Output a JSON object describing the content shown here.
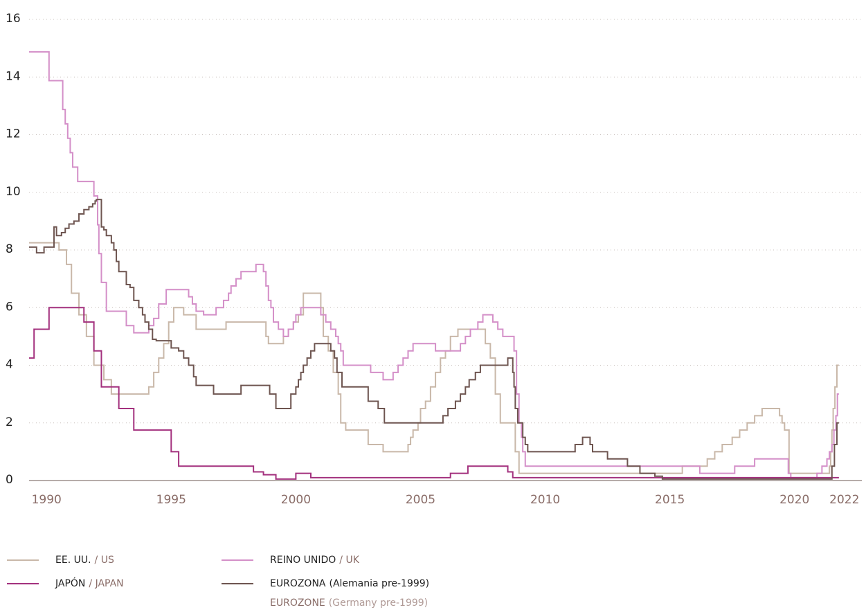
{
  "chart_data": {
    "type": "line",
    "step": true,
    "xlim": [
      1989.3,
      2022.7
    ],
    "ylim": [
      0,
      16
    ],
    "xticks": [
      1990,
      1995,
      2000,
      2005,
      2010,
      2015,
      2020,
      2022
    ],
    "yticks": [
      0,
      2,
      4,
      6,
      8,
      10,
      12,
      14,
      16
    ],
    "grid": true,
    "series": [
      {
        "name": "EE. UU.",
        "name_en": "/ US",
        "color": "#c9b8a9",
        "x": [
          1989.3,
          1990.5,
          1990.8,
          1991.0,
          1991.3,
          1991.6,
          1991.9,
          1992.3,
          1992.6,
          1994.1,
          1994.3,
          1994.5,
          1994.7,
          1994.9,
          1995.1,
          1995.5,
          1996.0,
          1997.2,
          1998.8,
          1998.9,
          1999.5,
          1999.7,
          1999.9,
          2000.1,
          2000.3,
          2001.0,
          2001.1,
          2001.3,
          2001.5,
          2001.7,
          2001.8,
          2002.0,
          2002.9,
          2003.5,
          2004.5,
          2004.6,
          2004.7,
          2004.9,
          2005.0,
          2005.2,
          2005.4,
          2005.6,
          2005.8,
          2006.0,
          2006.2,
          2006.5,
          2007.6,
          2007.8,
          2008.0,
          2008.2,
          2008.8,
          2008.95,
          2015.5,
          2016.5,
          2016.8,
          2017.1,
          2017.5,
          2017.8,
          2018.1,
          2018.4,
          2018.7,
          2019.4,
          2019.5,
          2019.6,
          2019.78,
          2021.4,
          2021.45,
          2021.5,
          2021.55,
          2021.62,
          2021.7,
          2021.78
        ],
        "values": [
          8.25,
          8.0,
          7.5,
          6.5,
          5.75,
          5.0,
          4.0,
          3.5,
          3.0,
          3.25,
          3.75,
          4.25,
          4.75,
          5.5,
          6.0,
          5.75,
          5.25,
          5.5,
          5.0,
          4.75,
          5.0,
          5.25,
          5.5,
          5.75,
          6.5,
          6.0,
          5.0,
          4.5,
          3.75,
          3.0,
          2.0,
          1.75,
          1.25,
          1.0,
          1.25,
          1.5,
          1.75,
          2.0,
          2.5,
          2.75,
          3.25,
          3.75,
          4.25,
          4.5,
          5.0,
          5.25,
          4.75,
          4.25,
          3.0,
          2.0,
          1.0,
          0.25,
          0.5,
          0.75,
          1.0,
          1.25,
          1.5,
          1.75,
          2.0,
          2.25,
          2.5,
          2.25,
          2.0,
          1.75,
          0.25,
          0.5,
          1.0,
          1.75,
          2.5,
          3.25,
          4.0,
          4.0
        ]
      },
      {
        "name": "REINO UNIDO",
        "name_en": "/ UK",
        "color": "#d48fc8",
        "x": [
          1989.3,
          1990.1,
          1990.65,
          1990.75,
          1990.85,
          1990.95,
          1991.05,
          1991.25,
          1991.9,
          1992.05,
          1992.1,
          1992.2,
          1992.4,
          1993.2,
          1993.5,
          1994.1,
          1994.3,
          1994.5,
          1994.8,
          1995.7,
          1995.85,
          1996.0,
          1996.3,
          1996.8,
          1997.1,
          1997.3,
          1997.4,
          1997.6,
          1997.8,
          1998.4,
          1998.7,
          1998.8,
          1998.9,
          1999.0,
          1999.1,
          1999.3,
          1999.5,
          1999.7,
          1999.9,
          2000.0,
          2000.2,
          2001.0,
          2001.2,
          2001.4,
          2001.6,
          2001.7,
          2001.8,
          2001.9,
          2003.0,
          2003.5,
          2003.9,
          2004.1,
          2004.3,
          2004.5,
          2004.7,
          2005.6,
          2006.6,
          2006.8,
          2007.0,
          2007.3,
          2007.5,
          2007.9,
          2008.1,
          2008.3,
          2008.75,
          2008.85,
          2008.95,
          2009.05,
          2009.1,
          2009.2,
          2016.2,
          2017.6,
          2018.4,
          2019.75,
          2019.85,
          2020.9,
          2021.1,
          2021.3,
          2021.4,
          2021.5,
          2021.58,
          2021.66,
          2021.72,
          2021.78
        ],
        "values": [
          14.875,
          13.875,
          12.875,
          12.375,
          11.875,
          11.375,
          10.875,
          10.375,
          9.875,
          8.875,
          7.875,
          6.875,
          5.875,
          5.375,
          5.125,
          5.375,
          5.625,
          6.125,
          6.625,
          6.375,
          6.125,
          5.875,
          5.75,
          6.0,
          6.25,
          6.5,
          6.75,
          7.0,
          7.25,
          7.5,
          7.25,
          6.75,
          6.25,
          6.0,
          5.5,
          5.25,
          5.0,
          5.25,
          5.5,
          5.75,
          6.0,
          5.75,
          5.5,
          5.25,
          5.0,
          4.75,
          4.5,
          4.0,
          3.75,
          3.5,
          3.75,
          4.0,
          4.25,
          4.5,
          4.75,
          4.5,
          4.75,
          5.0,
          5.25,
          5.5,
          5.75,
          5.5,
          5.25,
          5.0,
          4.5,
          3.0,
          2.0,
          1.5,
          1.0,
          0.5,
          0.25,
          0.5,
          0.75,
          0.25,
          0.1,
          0.25,
          0.5,
          0.75,
          1.0,
          1.25,
          1.75,
          2.25,
          3.0,
          3.0
        ]
      },
      {
        "name": "JAPÓN",
        "name_en": "/ JAPAN",
        "color": "#a3317e",
        "x": [
          1989.3,
          1989.5,
          1990.1,
          1991.5,
          1991.9,
          1992.2,
          1992.9,
          1993.5,
          1995.0,
          1995.3,
          1998.3,
          1998.7,
          1999.2,
          2000.0,
          2000.6,
          2006.2,
          2006.9,
          2008.5,
          2008.7,
          2021.78
        ],
        "values": [
          4.25,
          5.25,
          6.0,
          5.5,
          4.5,
          3.25,
          2.5,
          1.75,
          1.0,
          0.5,
          0.3,
          0.2,
          0.05,
          0.25,
          0.1,
          0.25,
          0.5,
          0.3,
          0.1,
          0.1
        ]
      },
      {
        "name": "EUROZONA",
        "name_note": "(Alemania pre-1999)",
        "name_en": "EUROZONE",
        "name_en_note": "(Germany pre-1999)",
        "color": "#6e5550",
        "x": [
          1989.3,
          1989.6,
          1989.9,
          1990.3,
          1990.4,
          1990.6,
          1990.75,
          1990.9,
          1991.1,
          1991.3,
          1991.5,
          1991.7,
          1991.85,
          1991.95,
          1992.0,
          1992.2,
          1992.3,
          1992.4,
          1992.6,
          1992.7,
          1992.8,
          1992.9,
          1993.2,
          1993.35,
          1993.5,
          1993.7,
          1993.85,
          1993.95,
          1994.1,
          1994.25,
          1994.4,
          1995.0,
          1995.3,
          1995.5,
          1995.7,
          1995.9,
          1996.0,
          1996.7,
          1997.8,
          1998.95,
          1999.2,
          1999.8,
          2000.0,
          2000.1,
          2000.2,
          2000.3,
          2000.45,
          2000.6,
          2000.75,
          2001.4,
          2001.55,
          2001.65,
          2001.85,
          2002.9,
          2003.3,
          2003.55,
          2005.9,
          2006.1,
          2006.4,
          2006.6,
          2006.8,
          2006.95,
          2007.2,
          2007.4,
          2008.5,
          2008.7,
          2008.75,
          2008.8,
          2008.9,
          2009.1,
          2009.2,
          2009.3,
          2011.2,
          2011.5,
          2011.8,
          2011.9,
          2012.5,
          2013.3,
          2013.8,
          2014.4,
          2014.7,
          2021.5,
          2021.6,
          2021.7,
          2021.78
        ],
        "values": [
          8.1,
          7.9,
          8.1,
          8.8,
          8.5,
          8.6,
          8.75,
          8.9,
          9.0,
          9.25,
          9.4,
          9.5,
          9.6,
          9.7,
          9.75,
          8.8,
          8.7,
          8.5,
          8.25,
          8.0,
          7.6,
          7.25,
          6.8,
          6.7,
          6.25,
          6.0,
          5.75,
          5.5,
          5.25,
          4.9,
          4.85,
          4.6,
          4.5,
          4.25,
          4.0,
          3.6,
          3.3,
          3.0,
          3.3,
          3.0,
          2.5,
          3.0,
          3.25,
          3.5,
          3.75,
          4.0,
          4.25,
          4.5,
          4.75,
          4.5,
          4.25,
          3.75,
          3.25,
          2.75,
          2.5,
          2.0,
          2.25,
          2.5,
          2.75,
          3.0,
          3.25,
          3.5,
          3.75,
          4.0,
          4.25,
          3.75,
          3.25,
          2.5,
          2.0,
          1.5,
          1.25,
          1.0,
          1.25,
          1.5,
          1.25,
          1.0,
          0.75,
          0.5,
          0.25,
          0.15,
          0.05,
          0.5,
          1.25,
          2.0,
          2.0
        ]
      }
    ]
  }
}
